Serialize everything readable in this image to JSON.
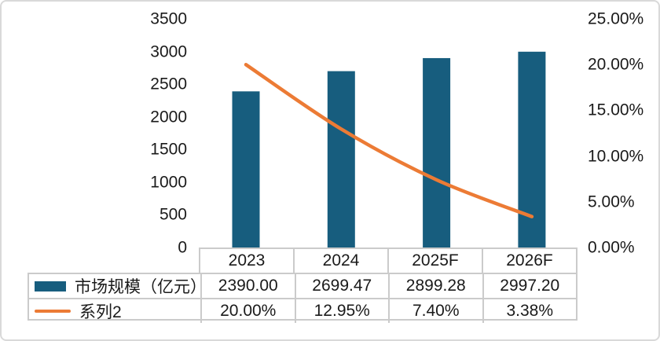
{
  "chart_data": {
    "type": "combo-bar-line",
    "title": "",
    "categories": [
      "2023",
      "2024",
      "2025F",
      "2026F"
    ],
    "series": [
      {
        "name": "市场规模（亿元）",
        "type": "bar",
        "axis": "left",
        "color": "#175d7e",
        "values": [
          2390.0,
          2699.47,
          2899.28,
          2997.2
        ],
        "labels": [
          "2390.00",
          "2699.47",
          "2899.28",
          "2997.20"
        ]
      },
      {
        "name": "系列2",
        "type": "line",
        "axis": "right",
        "color": "#ec7b35",
        "values": [
          0.2,
          0.1295,
          0.074,
          0.0338
        ],
        "labels": [
          "20.00%",
          "12.95%",
          "7.40%",
          "3.38%"
        ]
      }
    ],
    "left_axis": {
      "min": 0,
      "max": 3500,
      "step": 500,
      "tick_labels": [
        "3500",
        "3000",
        "2500",
        "2000",
        "1500",
        "1000",
        "500",
        "0"
      ]
    },
    "right_axis": {
      "min": 0,
      "max": 0.25,
      "step": 0.05,
      "tick_labels": [
        "25.00%",
        "20.00%",
        "15.00%",
        "10.00%",
        "5.00%",
        "0.00%"
      ]
    },
    "grid": false,
    "legend_position": "table-left-column"
  },
  "colors": {
    "bar": "#175d7e",
    "line": "#ec7b35",
    "table_border": "#cbcbcb",
    "card_border": "#d9d9d9",
    "text": "#1a1a1a"
  }
}
